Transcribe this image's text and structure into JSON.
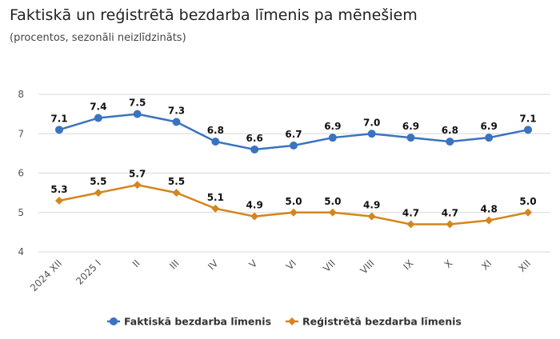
{
  "chart_data": {
    "type": "line",
    "title": "Faktiskā un reģistrētā bezdarba līmenis pa mēnešiem",
    "subtitle": "(procentos, sezonāli neizlīdzināts)",
    "categories": [
      "2024 XII",
      "2025 I",
      "II",
      "III",
      "IV",
      "V",
      "VI",
      "VII",
      "VIII",
      "IX",
      "X",
      "XI",
      "XII"
    ],
    "ylim": [
      4,
      8
    ],
    "yticks": [
      4,
      5,
      6,
      7,
      8
    ],
    "grid": true,
    "legend": "bottom",
    "series": [
      {
        "name": "Faktiskā bezdarba līmenis",
        "color": "#3a73c0",
        "marker": "circle",
        "values": [
          7.1,
          7.4,
          7.5,
          7.3,
          6.8,
          6.6,
          6.7,
          6.9,
          7.0,
          6.9,
          6.8,
          6.9,
          7.1
        ]
      },
      {
        "name": "Reģistrētā bezdarba līmenis",
        "color": "#d4861c",
        "marker": "diamond",
        "values": [
          5.3,
          5.5,
          5.7,
          5.5,
          5.1,
          4.9,
          5.0,
          5.0,
          4.9,
          4.7,
          4.7,
          4.8,
          5.0
        ]
      }
    ]
  }
}
